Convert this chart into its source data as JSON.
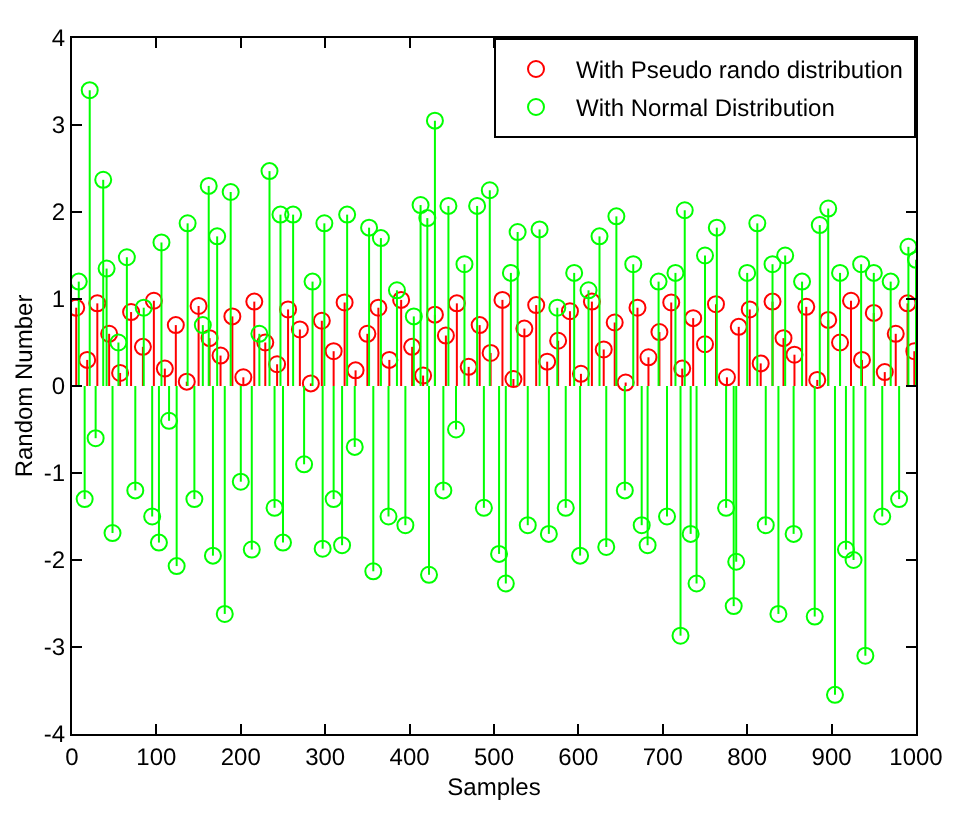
{
  "chart_data": {
    "type": "lollipop",
    "xlabel": "Samples",
    "ylabel": "Random Number",
    "xlim": [
      0,
      1000
    ],
    "xticks": [
      0,
      100,
      200,
      300,
      400,
      500,
      600,
      700,
      800,
      900,
      1000
    ],
    "ylim": [
      -4,
      4
    ],
    "yticks": [
      -4,
      -3,
      -2,
      -1,
      0,
      1,
      2,
      3,
      4
    ],
    "legend": "top right",
    "marker": "circle",
    "line_style": "solid",
    "series": [
      {
        "name": "With Pseudo rando distribution",
        "color": "#ff0000",
        "x": [
          5,
          18,
          30,
          44,
          57,
          70,
          84,
          97,
          110,
          123,
          136,
          150,
          163,
          176,
          190,
          203,
          216,
          229,
          243,
          256,
          270,
          283,
          296,
          310,
          323,
          336,
          350,
          363,
          376,
          390,
          403,
          416,
          430,
          443,
          456,
          470,
          483,
          496,
          510,
          523,
          536,
          550,
          563,
          576,
          590,
          603,
          616,
          630,
          643,
          656,
          670,
          683,
          696,
          710,
          723,
          736,
          750,
          763,
          776,
          790,
          803,
          816,
          830,
          843,
          856,
          870,
          883,
          896,
          910,
          923,
          936,
          950,
          963,
          976,
          990,
          998
        ],
        "values": [
          0.9,
          0.3,
          0.95,
          0.6,
          0.15,
          0.85,
          0.45,
          0.98,
          0.2,
          0.7,
          0.05,
          0.92,
          0.55,
          0.35,
          0.8,
          0.1,
          0.97,
          0.5,
          0.25,
          0.88,
          0.65,
          0.03,
          0.75,
          0.4,
          0.96,
          0.18,
          0.6,
          0.9,
          0.3,
          0.99,
          0.45,
          0.12,
          0.82,
          0.58,
          0.95,
          0.22,
          0.7,
          0.38,
          0.99,
          0.08,
          0.66,
          0.93,
          0.28,
          0.52,
          0.86,
          0.14,
          0.97,
          0.42,
          0.73,
          0.04,
          0.9,
          0.33,
          0.62,
          0.96,
          0.2,
          0.78,
          0.48,
          0.94,
          0.1,
          0.68,
          0.88,
          0.26,
          0.97,
          0.55,
          0.36,
          0.91,
          0.07,
          0.76,
          0.5,
          0.98,
          0.3,
          0.84,
          0.16,
          0.6,
          0.95,
          0.4
        ]
      },
      {
        "name": "With Normal Distribution",
        "color": "#00ff00",
        "x": [
          8,
          15,
          21,
          28,
          37,
          41,
          48,
          55,
          65,
          75,
          85,
          95,
          103,
          106,
          115,
          124,
          137,
          145,
          155,
          162,
          167,
          172,
          181,
          188,
          200,
          213,
          222,
          234,
          240,
          247,
          250,
          262,
          275,
          285,
          297,
          299,
          310,
          320,
          326,
          335,
          352,
          357,
          366,
          375,
          385,
          395,
          405,
          413,
          421,
          423,
          430,
          440,
          446,
          455,
          465,
          480,
          488,
          495,
          506,
          514,
          520,
          528,
          540,
          554,
          565,
          575,
          585,
          595,
          602,
          612,
          625,
          633,
          645,
          655,
          665,
          675,
          682,
          695,
          705,
          715,
          721,
          726,
          733,
          740,
          750,
          764,
          775,
          784,
          787,
          800,
          812,
          822,
          830,
          837,
          845,
          855,
          865,
          880,
          886,
          896,
          904,
          910,
          917,
          926,
          935,
          940,
          950,
          960,
          970,
          980,
          991,
          1000
        ],
        "values": [
          1.2,
          -1.3,
          3.4,
          -0.6,
          2.37,
          1.35,
          -1.69,
          0.5,
          1.48,
          -1.2,
          0.9,
          -1.5,
          -1.8,
          1.65,
          -0.4,
          -2.07,
          1.87,
          -1.3,
          0.7,
          2.3,
          -1.95,
          1.72,
          -2.62,
          2.23,
          -1.1,
          -1.88,
          0.6,
          2.47,
          -1.4,
          1.97,
          -1.8,
          1.97,
          -0.9,
          1.2,
          -1.87,
          1.87,
          -1.3,
          -1.83,
          1.97,
          -0.7,
          1.82,
          -2.13,
          1.7,
          -1.5,
          1.1,
          -1.6,
          0.8,
          2.08,
          1.93,
          -2.17,
          3.05,
          -1.2,
          2.07,
          -0.5,
          1.4,
          2.07,
          -1.4,
          2.25,
          -1.93,
          -2.27,
          1.3,
          1.77,
          -1.6,
          1.8,
          -1.7,
          0.9,
          -1.4,
          1.3,
          -1.95,
          1.1,
          1.72,
          -1.85,
          1.95,
          -1.2,
          1.4,
          -1.6,
          -1.83,
          1.2,
          -1.5,
          1.3,
          -2.87,
          2.02,
          -1.7,
          -2.27,
          1.5,
          1.82,
          -1.4,
          -2.53,
          -2.02,
          1.3,
          1.87,
          -1.6,
          1.4,
          -2.62,
          1.5,
          -1.7,
          1.2,
          -2.65,
          1.85,
          2.04,
          -3.55,
          1.3,
          -1.88,
          -2.0,
          1.4,
          -3.1,
          1.3,
          -1.5,
          1.2,
          -1.3,
          1.6,
          1.45
        ]
      }
    ]
  }
}
